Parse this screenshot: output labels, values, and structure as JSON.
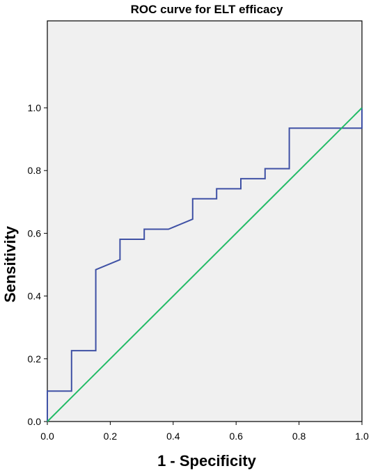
{
  "chart_data": {
    "type": "line",
    "title": "ROC curve for ELT efficacy",
    "xlabel": "1 - Specificity",
    "ylabel": "Sensitivity",
    "xlim": [
      0,
      1
    ],
    "ylim": [
      0,
      1.0
    ],
    "x_ticks": [
      "0.0",
      "0.2",
      "0.4",
      "0.6",
      "0.8",
      "1.0"
    ],
    "y_ticks": [
      "0.0",
      "0.2",
      "0.4",
      "0.6",
      "0.8",
      "1.0"
    ],
    "grid": false,
    "background_color": "#f0f0f0",
    "series": [
      {
        "color": "#3f51a5",
        "x": [
          0.0,
          0.0,
          0.077,
          0.077,
          0.154,
          0.154,
          0.231,
          0.231,
          0.308,
          0.308,
          0.385,
          0.462,
          0.462,
          0.538,
          0.538,
          0.615,
          0.615,
          0.692,
          0.692,
          0.769,
          0.769,
          0.846,
          0.923,
          1.0,
          1.0
        ],
        "y": [
          0.0,
          0.097,
          0.097,
          0.226,
          0.226,
          0.484,
          0.516,
          0.581,
          0.581,
          0.613,
          0.613,
          0.645,
          0.71,
          0.71,
          0.742,
          0.742,
          0.774,
          0.774,
          0.806,
          0.806,
          0.935,
          0.935,
          0.935,
          0.935,
          1.0
        ]
      },
      {
        "color": "#22bb66",
        "x": [
          0,
          1
        ],
        "y": [
          0,
          1
        ]
      }
    ]
  }
}
